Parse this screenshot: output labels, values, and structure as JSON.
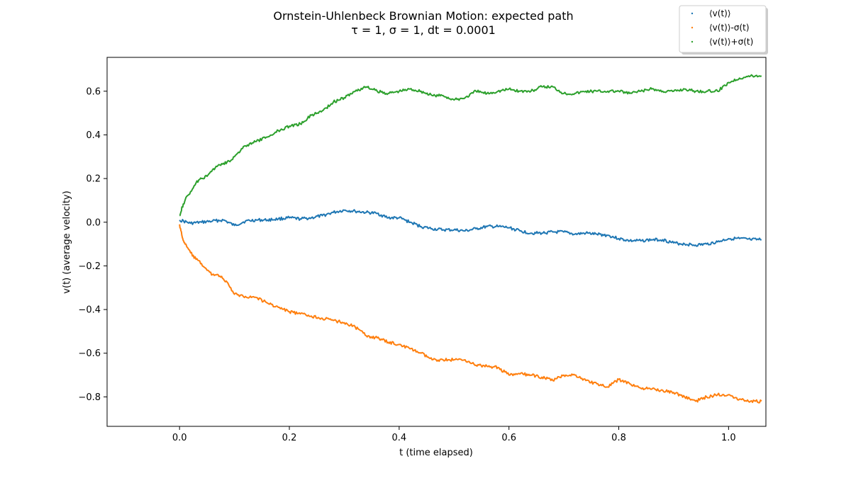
{
  "chart_data": {
    "type": "line",
    "title_line1": "Ornstein-Uhlenbeck Brownian Motion: expected path",
    "title_line2": "τ = 1, σ = 1, dt = 0.0001",
    "xlabel": "t (time elapsed)",
    "ylabel": "v(t) (average velocity)",
    "xlim": [
      -0.132,
      1.068
    ],
    "ylim": [
      -0.935,
      0.755
    ],
    "xticks": [
      0.0,
      0.2,
      0.4,
      0.6,
      0.8,
      1.0
    ],
    "xtick_labels": [
      "0.0",
      "0.2",
      "0.4",
      "0.6",
      "0.8",
      "1.0"
    ],
    "yticks": [
      -0.8,
      -0.6,
      -0.4,
      -0.2,
      0.0,
      0.2,
      0.4,
      0.6
    ],
    "ytick_labels": [
      "−0.8",
      "−0.6",
      "−0.4",
      "−0.2",
      "0.0",
      "0.2",
      "0.4",
      "0.6"
    ],
    "grid": false,
    "legend_placement": "top-right",
    "series": [
      {
        "name": "⟨v(t)⟩",
        "color": "#1f77b4",
        "x": [
          0.0,
          0.02,
          0.04,
          0.06,
          0.08,
          0.1,
          0.12,
          0.14,
          0.16,
          0.18,
          0.2,
          0.22,
          0.24,
          0.26,
          0.28,
          0.3,
          0.32,
          0.34,
          0.36,
          0.38,
          0.4,
          0.42,
          0.44,
          0.46,
          0.48,
          0.5,
          0.52,
          0.54,
          0.56,
          0.58,
          0.6,
          0.62,
          0.64,
          0.66,
          0.68,
          0.7,
          0.72,
          0.74,
          0.76,
          0.78,
          0.8,
          0.82,
          0.84,
          0.86,
          0.88,
          0.9,
          0.92,
          0.94,
          0.96,
          0.98,
          1.0,
          1.02,
          1.04,
          1.06
        ],
        "y": [
          0.01,
          -0.005,
          0.0,
          0.005,
          0.01,
          -0.015,
          0.005,
          0.01,
          0.01,
          0.015,
          0.02,
          0.015,
          0.02,
          0.03,
          0.045,
          0.055,
          0.05,
          0.045,
          0.04,
          0.02,
          0.02,
          0.0,
          -0.02,
          -0.03,
          -0.035,
          -0.035,
          -0.04,
          -0.03,
          -0.02,
          -0.02,
          -0.025,
          -0.04,
          -0.05,
          -0.05,
          -0.045,
          -0.045,
          -0.055,
          -0.05,
          -0.055,
          -0.06,
          -0.075,
          -0.085,
          -0.085,
          -0.08,
          -0.08,
          -0.095,
          -0.1,
          -0.105,
          -0.1,
          -0.09,
          -0.075,
          -0.075,
          -0.08,
          -0.08
        ]
      },
      {
        "name": "⟨v(t)⟩-σ(t)",
        "color": "#ff7f0e",
        "x": [
          0.0,
          0.005,
          0.01,
          0.02,
          0.03,
          0.04,
          0.05,
          0.06,
          0.07,
          0.08,
          0.09,
          0.1,
          0.12,
          0.14,
          0.16,
          0.18,
          0.2,
          0.22,
          0.24,
          0.26,
          0.28,
          0.3,
          0.32,
          0.34,
          0.36,
          0.38,
          0.4,
          0.42,
          0.44,
          0.46,
          0.48,
          0.5,
          0.52,
          0.54,
          0.56,
          0.58,
          0.6,
          0.62,
          0.64,
          0.66,
          0.68,
          0.7,
          0.72,
          0.74,
          0.76,
          0.78,
          0.8,
          0.82,
          0.84,
          0.86,
          0.88,
          0.9,
          0.92,
          0.94,
          0.96,
          0.98,
          1.0,
          1.02,
          1.04,
          1.06
        ],
        "y": [
          -0.01,
          -0.07,
          -0.1,
          -0.14,
          -0.17,
          -0.19,
          -0.22,
          -0.24,
          -0.24,
          -0.26,
          -0.29,
          -0.33,
          -0.34,
          -0.345,
          -0.37,
          -0.39,
          -0.41,
          -0.42,
          -0.43,
          -0.44,
          -0.45,
          -0.46,
          -0.48,
          -0.52,
          -0.53,
          -0.55,
          -0.56,
          -0.58,
          -0.6,
          -0.63,
          -0.63,
          -0.63,
          -0.63,
          -0.655,
          -0.66,
          -0.665,
          -0.7,
          -0.695,
          -0.7,
          -0.71,
          -0.725,
          -0.7,
          -0.7,
          -0.725,
          -0.74,
          -0.755,
          -0.72,
          -0.74,
          -0.76,
          -0.765,
          -0.77,
          -0.78,
          -0.8,
          -0.82,
          -0.8,
          -0.79,
          -0.79,
          -0.81,
          -0.82,
          -0.82
        ]
      },
      {
        "name": "⟨v(t)⟩+σ(t)",
        "color": "#2ca02c",
        "x": [
          0.0,
          0.005,
          0.01,
          0.02,
          0.03,
          0.04,
          0.05,
          0.06,
          0.07,
          0.08,
          0.09,
          0.1,
          0.12,
          0.14,
          0.16,
          0.18,
          0.2,
          0.22,
          0.24,
          0.26,
          0.28,
          0.3,
          0.32,
          0.34,
          0.36,
          0.38,
          0.4,
          0.42,
          0.44,
          0.46,
          0.48,
          0.5,
          0.52,
          0.54,
          0.56,
          0.58,
          0.6,
          0.62,
          0.64,
          0.66,
          0.68,
          0.7,
          0.72,
          0.74,
          0.76,
          0.78,
          0.8,
          0.82,
          0.84,
          0.86,
          0.88,
          0.9,
          0.92,
          0.94,
          0.96,
          0.98,
          1.0,
          1.02,
          1.04,
          1.06
        ],
        "y": [
          0.03,
          0.07,
          0.1,
          0.14,
          0.18,
          0.2,
          0.21,
          0.24,
          0.26,
          0.27,
          0.28,
          0.3,
          0.35,
          0.37,
          0.39,
          0.42,
          0.44,
          0.45,
          0.49,
          0.51,
          0.55,
          0.57,
          0.6,
          0.62,
          0.6,
          0.59,
          0.6,
          0.61,
          0.6,
          0.58,
          0.58,
          0.56,
          0.57,
          0.6,
          0.59,
          0.6,
          0.61,
          0.6,
          0.6,
          0.62,
          0.62,
          0.59,
          0.59,
          0.6,
          0.6,
          0.6,
          0.6,
          0.59,
          0.6,
          0.61,
          0.6,
          0.6,
          0.61,
          0.6,
          0.6,
          0.6,
          0.64,
          0.66,
          0.67,
          0.67
        ]
      }
    ]
  }
}
